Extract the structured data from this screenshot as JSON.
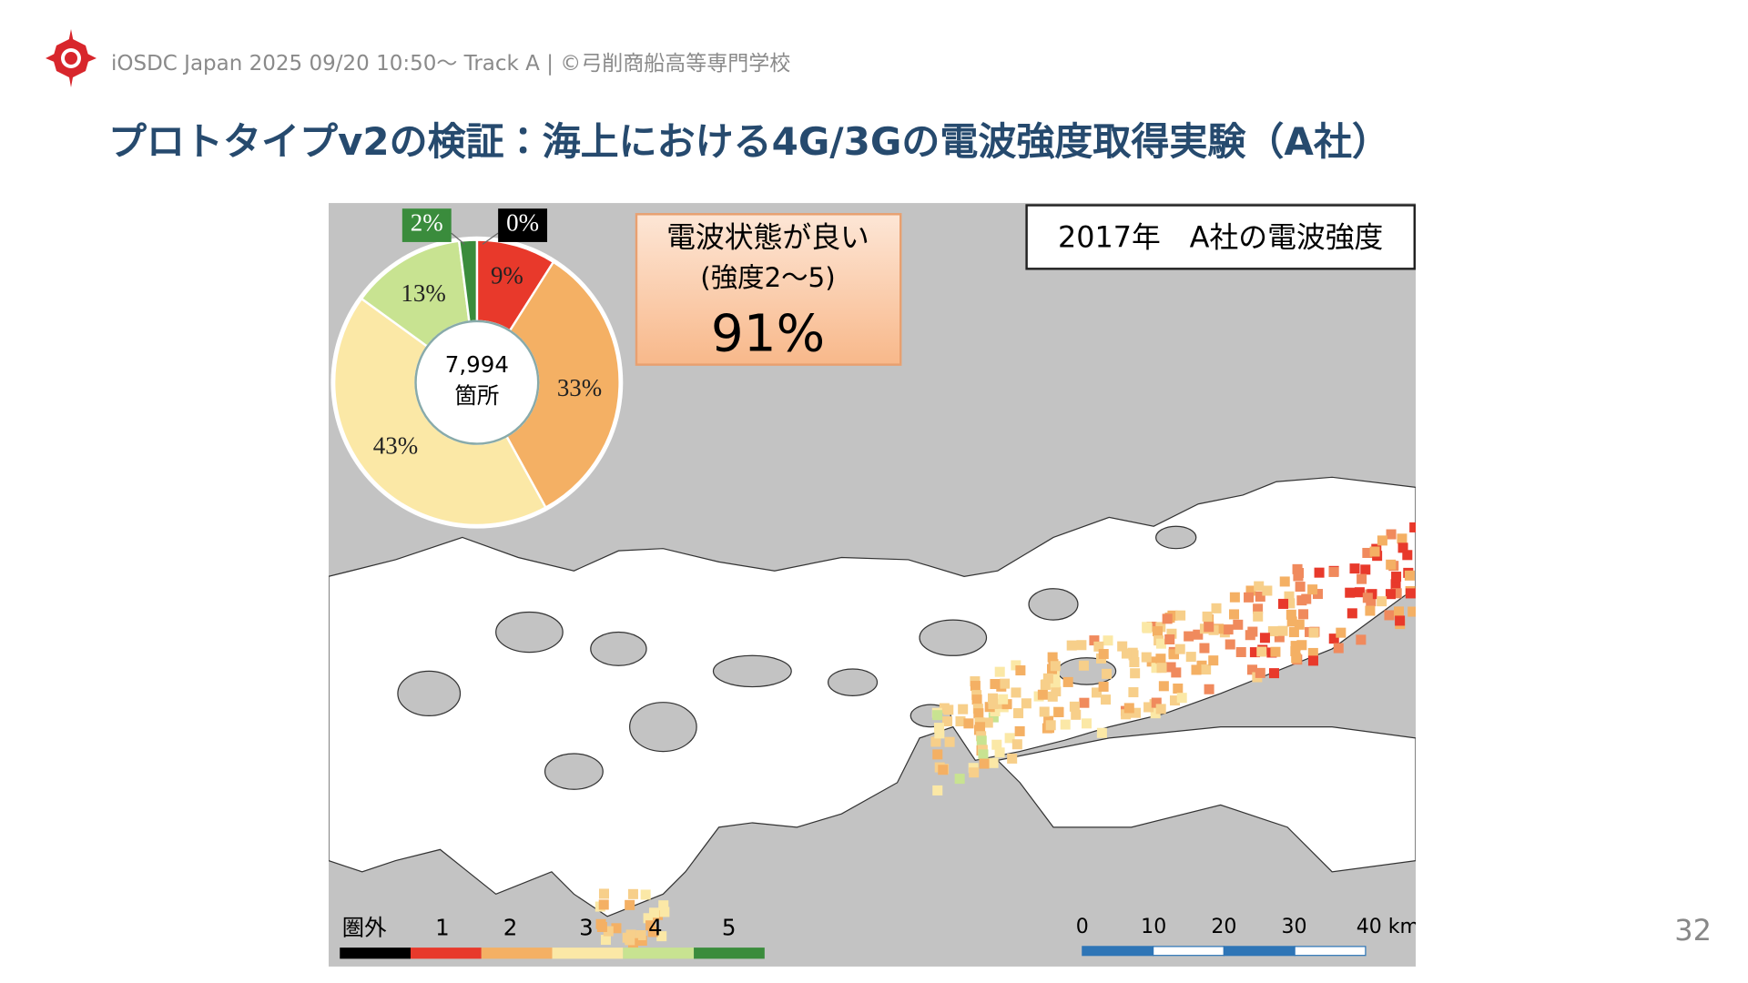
{
  "header": {
    "text": "iOSDC Japan 2025 09/20 10:50〜 Track A | ©弓削商船高等専門学校"
  },
  "title": "プロトタイプv2の検証：海上における4G/3Gの電波強度取得実験（A社）",
  "figure": {
    "heading": "2017年　A社の電波強度",
    "callout": {
      "line1": "電波状態が良い",
      "line2": "(強度2〜5)",
      "value": "91%"
    },
    "pie": {
      "center_count": "7,994",
      "center_unit": "箇所",
      "values": [
        0,
        9,
        33,
        43,
        13,
        2
      ],
      "value_labels": [
        "0%",
        "9%",
        "33%",
        "43%",
        "13%",
        "2%"
      ],
      "colors": [
        "#000000",
        "#e8392b",
        "#f4b064",
        "#fbe8a6",
        "#c8e391",
        "#3a8c3c"
      ]
    },
    "legend": {
      "labels": [
        "圏外",
        "1",
        "2",
        "3",
        "4",
        "5"
      ],
      "colors": [
        "#000000",
        "#e8392b",
        "#f4b064",
        "#fbe8a6",
        "#c8e391",
        "#3a8c3c"
      ]
    },
    "scale": {
      "labels": [
        "0",
        "10",
        "20",
        "30",
        "40 km"
      ]
    }
  },
  "page_number": "32"
}
